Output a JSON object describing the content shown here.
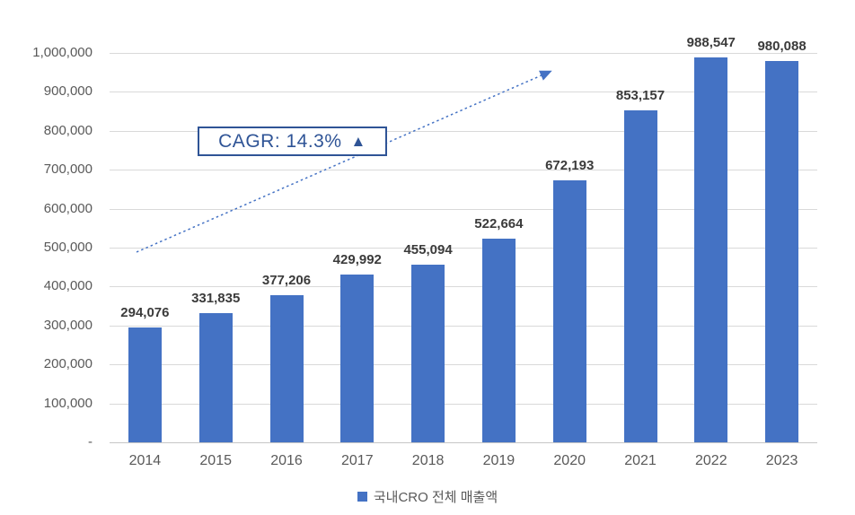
{
  "chart_data": {
    "type": "bar",
    "title": "",
    "categories": [
      "2014",
      "2015",
      "2016",
      "2017",
      "2018",
      "2019",
      "2020",
      "2021",
      "2022",
      "2023"
    ],
    "series": [
      {
        "name": "국내CRO 전체 매출액",
        "values": [
          294076,
          331835,
          377206,
          429992,
          455094,
          522664,
          672193,
          853157,
          988547,
          980088
        ]
      }
    ],
    "value_labels": [
      "294,076",
      "331,835",
      "377,206",
      "429,992",
      "455,094",
      "522,664",
      "672,193",
      "853,157",
      "988,547",
      "980,088"
    ],
    "xlabel": "",
    "ylabel": "",
    "ylim": [
      0,
      1000000
    ],
    "ytick_step": 100000,
    "ytick_labels": [
      "-",
      "100,000",
      "200,000",
      "300,000",
      "400,000",
      "500,000",
      "600,000",
      "700,000",
      "800,000",
      "900,000",
      "1,000,000"
    ],
    "grid": true,
    "legend_position": "bottom-center",
    "annotation": "CAGR: 14.3%",
    "trendline_style": "dotted-arrow"
  },
  "annotation_box": {
    "text": "CAGR: 14.3%",
    "triangle_symbol": "▲"
  },
  "legend": {
    "label": "국내CRO 전체 매출액"
  },
  "colors": {
    "bar": "#4472c4",
    "trendline": "#4472c4",
    "annotation_text": "#2f5496",
    "annotation_border": "#2f5496",
    "gridline": "#d9d9d9",
    "tick_text": "#595959",
    "value_label_text": "#3b3b3b"
  }
}
